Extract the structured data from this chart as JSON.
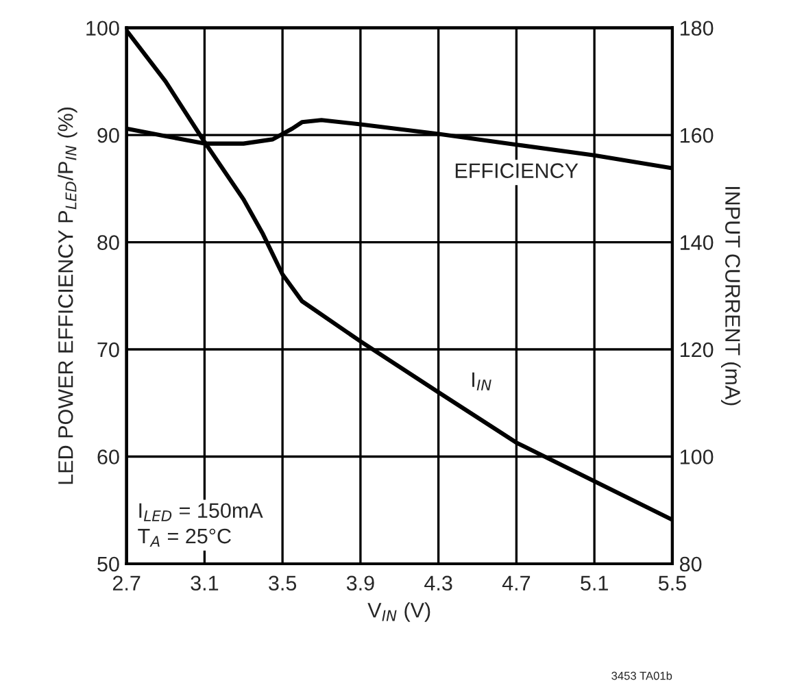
{
  "chart_data": {
    "type": "line",
    "xlabel": "V$_{IN}$ (V)",
    "ylabel": "LED POWER EFFICIENCY P$_{LED}$/P$_{IN}$ (%)",
    "y2label": "INPUT CURRENT (mA)",
    "xlim": [
      2.7,
      5.5
    ],
    "xticks": [
      2.7,
      3.1,
      3.5,
      3.9,
      4.3,
      4.7,
      5.1,
      5.5
    ],
    "ylim": [
      50,
      100
    ],
    "yticks": [
      50,
      60,
      70,
      80,
      90,
      100
    ],
    "y2lim": [
      80,
      180
    ],
    "y2ticks": [
      80,
      100,
      120,
      140,
      160,
      180
    ],
    "grid": true,
    "legend": false,
    "line_style": "solid",
    "marker": "none",
    "series": [
      {
        "name": "EFFICIENCY",
        "color": "#000000",
        "x": [
          2.7,
          2.9,
          3.1,
          3.3,
          3.45,
          3.55,
          3.6,
          3.7,
          3.9,
          4.3,
          4.7,
          5.1,
          5.5
        ],
        "values": [
          90.6,
          89.9,
          89.2,
          89.2,
          89.6,
          90.6,
          91.2,
          91.4,
          91.0,
          90.1,
          89.1,
          88.1,
          86.9
        ]
      },
      {
        "name": "I$_{IN}$",
        "axis": "y2",
        "color": "#000000",
        "x": [
          2.7,
          2.9,
          3.1,
          3.3,
          3.4,
          3.5,
          3.6,
          3.9,
          4.3,
          4.7,
          5.1,
          5.5
        ],
        "values": [
          179.5,
          170,
          158.7,
          148,
          141.5,
          134,
          129,
          121.5,
          112,
          102.6,
          95.4,
          88.2
        ]
      }
    ],
    "annotations": [
      "I$_{LED}$ = 150mA\nT$_{A}$ = 25°C",
      "3453 TA01b"
    ]
  }
}
